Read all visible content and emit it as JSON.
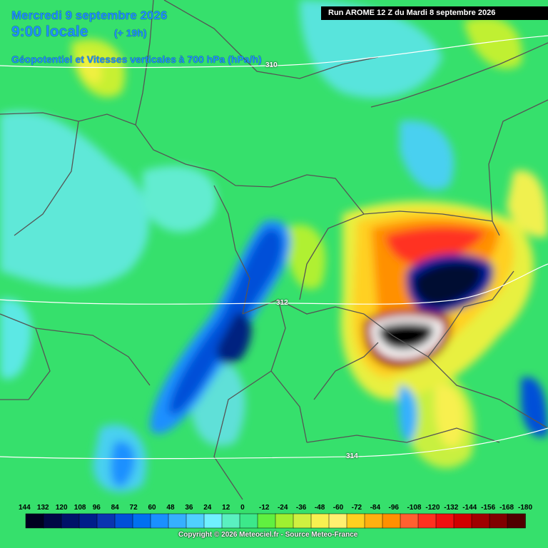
{
  "header": {
    "date": "Mercredi 9 septembre 2026",
    "time": "9:00 locale",
    "lead": "(+ 19h)",
    "field": "Géopotentiel et Vitesses verticales à 700 hPa (hPa/h)"
  },
  "run_info": "Run AROME 12 Z du Mardi 8 septembre 2026",
  "contour_labels": [
    "310",
    "312",
    "314"
  ],
  "scale": {
    "labels": [
      "144",
      "132",
      "120",
      "108",
      "96",
      "84",
      "72",
      "60",
      "48",
      "36",
      "24",
      "12",
      "0",
      "-12",
      "-24",
      "-36",
      "-48",
      "-60",
      "-72",
      "-84",
      "-96",
      "-108",
      "-120",
      "-132",
      "-144",
      "-156",
      "-168",
      "-180"
    ],
    "colors": [
      "#000020",
      "#000845",
      "#001268",
      "#001e8a",
      "#0a34b0",
      "#0050d8",
      "#0070f0",
      "#1a90ff",
      "#36b0ff",
      "#50d0ff",
      "#70f0ff",
      "#5af0c0",
      "#3ce88a",
      "#60f040",
      "#a0f030",
      "#d0f040",
      "#f8f050",
      "#fff070",
      "#ffd020",
      "#ffb010",
      "#ff9000",
      "#ff6030",
      "#ff3020",
      "#f01010",
      "#d00000",
      "#a00000",
      "#800000",
      "#500000"
    ]
  },
  "copyright": "Copyright © 2026 Meteociel.fr - Source Meteo-France"
}
